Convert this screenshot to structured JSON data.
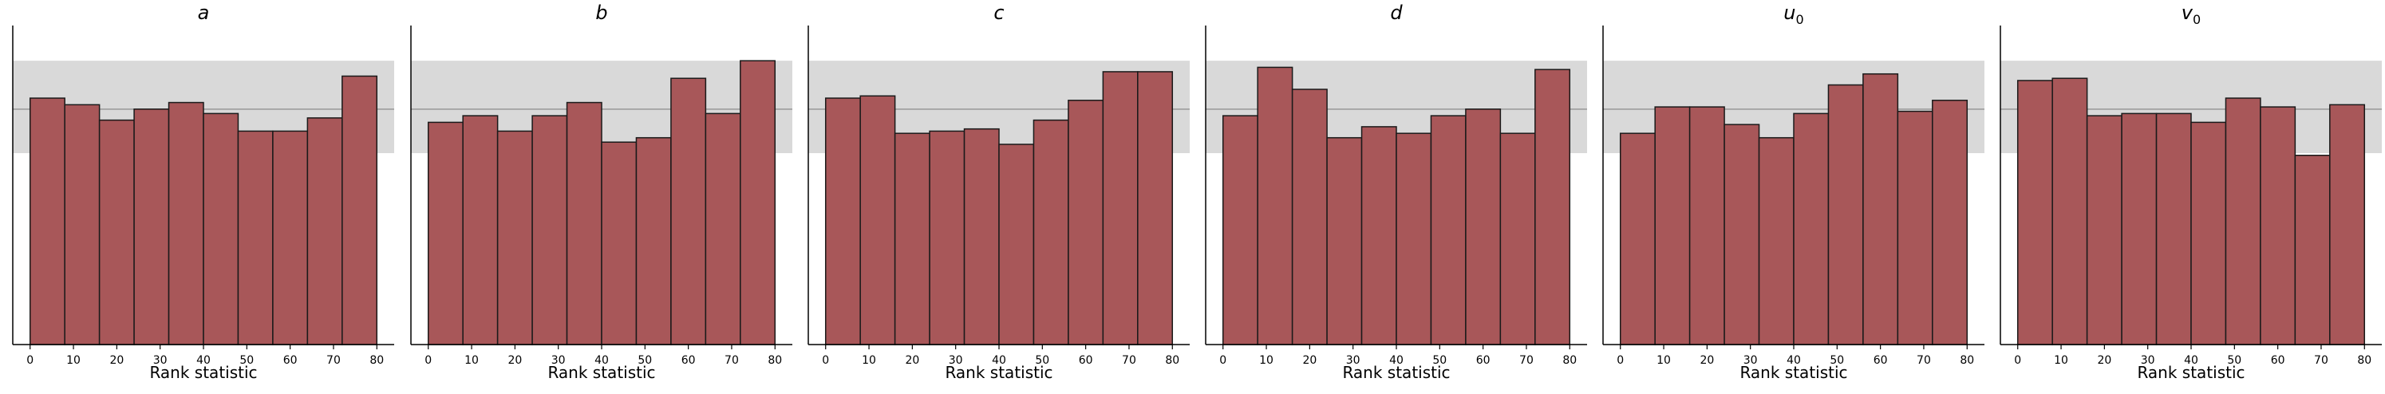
{
  "chart_data": [
    {
      "type": "bar",
      "title": "a",
      "xlabel": "Rank statistic",
      "bin_edges": [
        0,
        8,
        16,
        24,
        32,
        40,
        48,
        56,
        64,
        72,
        80
      ],
      "values": [
        1.12,
        1.09,
        1.02,
        1.07,
        1.1,
        1.05,
        0.97,
        0.97,
        1.03,
        1.22
      ],
      "xticks": [
        "0",
        "10",
        "20",
        "30",
        "40",
        "50",
        "60",
        "70",
        "80"
      ],
      "xlim": [
        -4,
        84
      ],
      "ylim": [
        0,
        1.45
      ],
      "band": [
        0.87,
        1.29
      ],
      "mean_line": 1.07
    },
    {
      "type": "bar",
      "title": "b",
      "xlabel": "Rank statistic",
      "bin_edges": [
        0,
        8,
        16,
        24,
        32,
        40,
        48,
        56,
        64,
        72,
        80
      ],
      "values": [
        1.01,
        1.04,
        0.97,
        1.04,
        1.1,
        0.92,
        0.94,
        1.21,
        1.05,
        1.29
      ],
      "xticks": [
        "0",
        "10",
        "20",
        "30",
        "40",
        "50",
        "60",
        "70",
        "80"
      ],
      "xlim": [
        -4,
        84
      ],
      "ylim": [
        0,
        1.45
      ],
      "band": [
        0.87,
        1.29
      ],
      "mean_line": 1.07
    },
    {
      "type": "bar",
      "title": "c",
      "xlabel": "Rank statistic",
      "bin_edges": [
        0,
        8,
        16,
        24,
        32,
        40,
        48,
        56,
        64,
        72,
        80
      ],
      "values": [
        1.12,
        1.13,
        0.96,
        0.97,
        0.98,
        0.91,
        1.02,
        1.11,
        1.24,
        1.24
      ],
      "xticks": [
        "0",
        "10",
        "20",
        "30",
        "40",
        "50",
        "60",
        "70",
        "80"
      ],
      "xlim": [
        -4,
        84
      ],
      "ylim": [
        0,
        1.45
      ],
      "band": [
        0.87,
        1.29
      ],
      "mean_line": 1.07
    },
    {
      "type": "bar",
      "title": "d",
      "xlabel": "Rank statistic",
      "bin_edges": [
        0,
        8,
        16,
        24,
        32,
        40,
        48,
        56,
        64,
        72,
        80
      ],
      "values": [
        1.04,
        1.26,
        1.16,
        0.94,
        0.99,
        0.96,
        1.04,
        1.07,
        0.96,
        1.25
      ],
      "xticks": [
        "0",
        "10",
        "20",
        "30",
        "40",
        "50",
        "60",
        "70",
        "80"
      ],
      "xlim": [
        -4,
        84
      ],
      "ylim": [
        0,
        1.45
      ],
      "band": [
        0.87,
        1.29
      ],
      "mean_line": 1.07
    },
    {
      "type": "bar",
      "title": "u",
      "title_sub": "0",
      "xlabel": "Rank statistic",
      "bin_edges": [
        0,
        8,
        16,
        24,
        32,
        40,
        48,
        56,
        64,
        72,
        80
      ],
      "values": [
        0.96,
        1.08,
        1.08,
        1.0,
        0.94,
        1.05,
        1.18,
        1.23,
        1.06,
        1.11
      ],
      "xticks": [
        "0",
        "10",
        "20",
        "30",
        "40",
        "50",
        "60",
        "70",
        "80"
      ],
      "xlim": [
        -4,
        84
      ],
      "ylim": [
        0,
        1.45
      ],
      "band": [
        0.87,
        1.29
      ],
      "mean_line": 1.07
    },
    {
      "type": "bar",
      "title": "v",
      "title_sub": "0",
      "xlabel": "Rank statistic",
      "bin_edges": [
        0,
        8,
        16,
        24,
        32,
        40,
        48,
        56,
        64,
        72,
        80
      ],
      "values": [
        1.2,
        1.21,
        1.04,
        1.05,
        1.05,
        1.01,
        1.12,
        1.08,
        0.86,
        1.09
      ],
      "xticks": [
        "0",
        "10",
        "20",
        "30",
        "40",
        "50",
        "60",
        "70",
        "80"
      ],
      "xlim": [
        -4,
        84
      ],
      "ylim": [
        0,
        1.45
      ],
      "band": [
        0.87,
        1.29
      ],
      "mean_line": 1.07
    }
  ],
  "colors": {
    "bar_fill": "#a85759",
    "bar_edge": "#1a1a1a",
    "band": "#d9d9d9",
    "mean_line": "#999999",
    "axis": "#000000"
  }
}
